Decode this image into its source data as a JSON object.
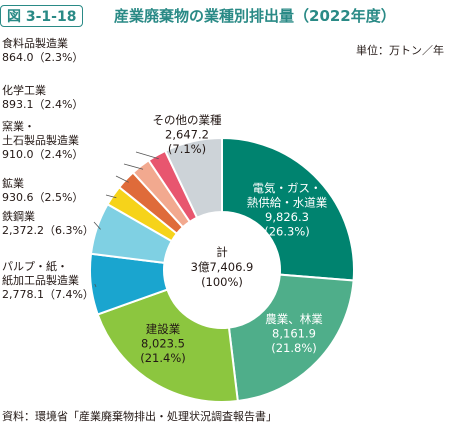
{
  "header": {
    "figure_no": "図 3-1-18",
    "title": "産業廃棄物の業種別排出量（2022年度）"
  },
  "unit_label": "単位：万トン／年",
  "source_label": "資料：環境省「産業廃棄物排出・処理状況調査報告書」",
  "colors": {
    "accent": "#2a8a86",
    "segments": [
      "#00836f",
      "#4fae8a",
      "#8cc63f",
      "#1aa5cf",
      "#7fd0e3",
      "#f6d31a",
      "#df6b3a",
      "#f2a98f",
      "#e8566f",
      "#cdd3d8"
    ]
  },
  "chart_data": {
    "type": "pie",
    "center_label": [
      "計",
      "3億7,406.9",
      "(100%)"
    ],
    "segments": [
      {
        "lines": [
          "電気・ガス・",
          "熱供給・水道業",
          "9,826.3",
          "(26.3%)"
        ],
        "value": 9826.3,
        "percent": 26.3
      },
      {
        "lines": [
          "農業、林業",
          "8,161.9",
          "(21.8%)"
        ],
        "value": 8161.9,
        "percent": 21.8
      },
      {
        "lines": [
          "建設業",
          "8,023.5",
          "(21.4%)"
        ],
        "value": 8023.5,
        "percent": 21.4
      },
      {
        "lines": [
          "パルプ・紙・",
          "紙加工品製造業",
          "2,778.1（7.4%）"
        ],
        "value": 2778.1,
        "percent": 7.4
      },
      {
        "lines": [
          "鉄鋼業",
          "2,372.2（6.3%）"
        ],
        "value": 2372.2,
        "percent": 6.3
      },
      {
        "lines": [
          "鉱業",
          "930.6（2.5%）"
        ],
        "value": 930.6,
        "percent": 2.5
      },
      {
        "lines": [
          "窯業・",
          "土石製品製造業",
          "910.0（2.4%）"
        ],
        "value": 910.0,
        "percent": 2.4
      },
      {
        "lines": [
          "化学工業",
          "893.1（2.4%）"
        ],
        "value": 893.1,
        "percent": 2.4
      },
      {
        "lines": [
          "食料品製造業",
          "864.0（2.3%）"
        ],
        "value": 864.0,
        "percent": 2.3
      },
      {
        "lines": [
          "その他の業種",
          "2,647.2",
          "(7.1%)"
        ],
        "value": 2647.2,
        "percent": 7.1
      }
    ]
  }
}
